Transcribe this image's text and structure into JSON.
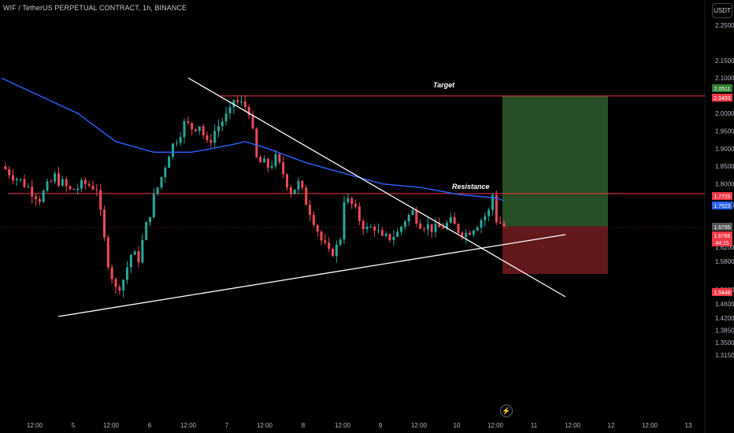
{
  "header": {
    "title": "WIF / TetherUS PERPETUAL CONTRACT, 1h, BINANCE"
  },
  "currency_button": "USDT",
  "icons": {
    "bolt": "lightning-icon"
  },
  "colors": {
    "bull": "#26a69a",
    "bear": "#ef4957",
    "ma": "#2962ff",
    "hline": "#f23645",
    "target": "#2e5c2e",
    "stop": "#6e1b1f",
    "trend": "#ffffff"
  },
  "chart_data": {
    "type": "candlestick",
    "symbol": "WIF / TetherUS PERPETUAL CONTRACT, 1h, BINANCE",
    "y_ticks": [
      "2.2500",
      "2.1500",
      "2.1000",
      "2.0000",
      "1.9500",
      "1.9000",
      "1.8500",
      "1.8000",
      "1.7400",
      "1.6200",
      "1.5800",
      "1.5000",
      "1.4600",
      "1.4200",
      "1.3850",
      "1.3500",
      "1.3150"
    ],
    "x_ticks": [
      "12:00",
      "5",
      "12:00",
      "6",
      "12:00",
      "7",
      "12:00",
      "8",
      "12:00",
      "9",
      "12:00",
      "10",
      "12:00",
      "11",
      "12:00",
      "12",
      "12:00",
      "13"
    ],
    "annotations": {
      "target": "Target",
      "resistance": "Resistance"
    },
    "price_labels": [
      {
        "text": "2.0511",
        "role": "target-top"
      },
      {
        "text": "2.0493",
        "role": "target-line"
      },
      {
        "text": "1.7725",
        "role": "resistance"
      },
      {
        "text": "1.7523",
        "role": "moving-average"
      },
      {
        "text": "1.6795",
        "role": "entry"
      },
      {
        "text": "1.6766",
        "role": "last-price"
      },
      {
        "text": "44:15",
        "role": "countdown"
      },
      {
        "text": "1.5448",
        "role": "stop"
      }
    ],
    "levels": {
      "target": 2.0493,
      "resistance": 1.7725,
      "entry": 1.6795,
      "stop": 1.5448,
      "last": 1.6766,
      "ma_last": 1.7523
    },
    "close_path": [
      [
        0,
        1.85
      ],
      [
        6,
        1.8
      ],
      [
        10,
        1.76
      ],
      [
        14,
        1.82
      ],
      [
        18,
        1.78
      ],
      [
        22,
        1.8
      ],
      [
        25,
        1.79
      ],
      [
        26,
        1.71
      ],
      [
        27,
        1.64
      ],
      [
        28,
        1.58
      ],
      [
        30,
        1.5
      ],
      [
        32,
        1.53
      ],
      [
        34,
        1.6
      ],
      [
        36,
        1.59
      ],
      [
        38,
        1.68
      ],
      [
        40,
        1.76
      ],
      [
        42,
        1.82
      ],
      [
        44,
        1.89
      ],
      [
        46,
        1.93
      ],
      [
        48,
        1.97
      ],
      [
        50,
        1.96
      ],
      [
        52,
        1.97
      ],
      [
        54,
        1.91
      ],
      [
        56,
        1.95
      ],
      [
        58,
        1.98
      ],
      [
        60,
        2.0
      ],
      [
        61,
        2.04
      ],
      [
        62,
        2.03
      ],
      [
        64,
        2.02
      ],
      [
        65,
        2.01
      ],
      [
        66,
        1.94
      ],
      [
        67,
        1.87
      ],
      [
        68,
        1.86
      ],
      [
        70,
        1.85
      ],
      [
        72,
        1.87
      ],
      [
        74,
        1.83
      ],
      [
        76,
        1.78
      ],
      [
        78,
        1.8
      ],
      [
        80,
        1.75
      ],
      [
        82,
        1.7
      ],
      [
        84,
        1.64
      ],
      [
        86,
        1.6
      ],
      [
        88,
        1.62
      ],
      [
        89,
        1.65
      ],
      [
        90,
        1.76
      ],
      [
        92,
        1.74
      ],
      [
        94,
        1.7
      ],
      [
        96,
        1.67
      ],
      [
        98,
        1.68
      ],
      [
        100,
        1.64
      ],
      [
        102,
        1.65
      ],
      [
        104,
        1.66
      ],
      [
        106,
        1.7
      ],
      [
        108,
        1.72
      ],
      [
        110,
        1.69
      ],
      [
        112,
        1.68
      ],
      [
        114,
        1.67
      ],
      [
        116,
        1.68
      ],
      [
        118,
        1.69
      ],
      [
        120,
        1.67
      ],
      [
        122,
        1.66
      ],
      [
        124,
        1.68
      ],
      [
        126,
        1.7
      ],
      [
        128,
        1.72
      ],
      [
        129,
        1.77
      ],
      [
        130,
        1.7
      ],
      [
        132,
        1.68
      ]
    ],
    "ma_path": [
      [
        0,
        2.1
      ],
      [
        10,
        2.05
      ],
      [
        20,
        2.0
      ],
      [
        30,
        1.92
      ],
      [
        40,
        1.89
      ],
      [
        50,
        1.89
      ],
      [
        60,
        1.91
      ],
      [
        64,
        1.92
      ],
      [
        70,
        1.9
      ],
      [
        80,
        1.86
      ],
      [
        90,
        1.83
      ],
      [
        100,
        1.8
      ],
      [
        110,
        1.79
      ],
      [
        120,
        1.77
      ],
      [
        130,
        1.76
      ],
      [
        132,
        1.7523
      ]
    ]
  }
}
